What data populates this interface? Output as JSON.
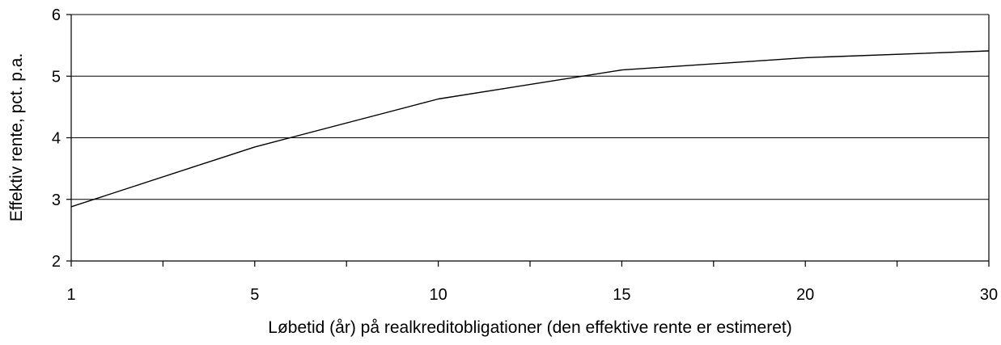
{
  "chart_data": {
    "type": "line",
    "categories": [
      "1",
      "5",
      "10",
      "15",
      "20",
      "30"
    ],
    "series": [
      {
        "values": [
          2.88,
          3.85,
          4.63,
          5.1,
          5.3,
          5.41
        ]
      }
    ],
    "ylim": [
      2,
      6
    ],
    "yticks": [
      "2",
      "3",
      "4",
      "5",
      "6"
    ],
    "xlabel": "Løbetid (år) på realkreditobligationer (den effektive rente er estimeret)",
    "ylabel": "Effektiv rente, pct. p.a.",
    "grid": "horizontal",
    "colors": {
      "line": "#000000",
      "grid": "#000000"
    }
  }
}
